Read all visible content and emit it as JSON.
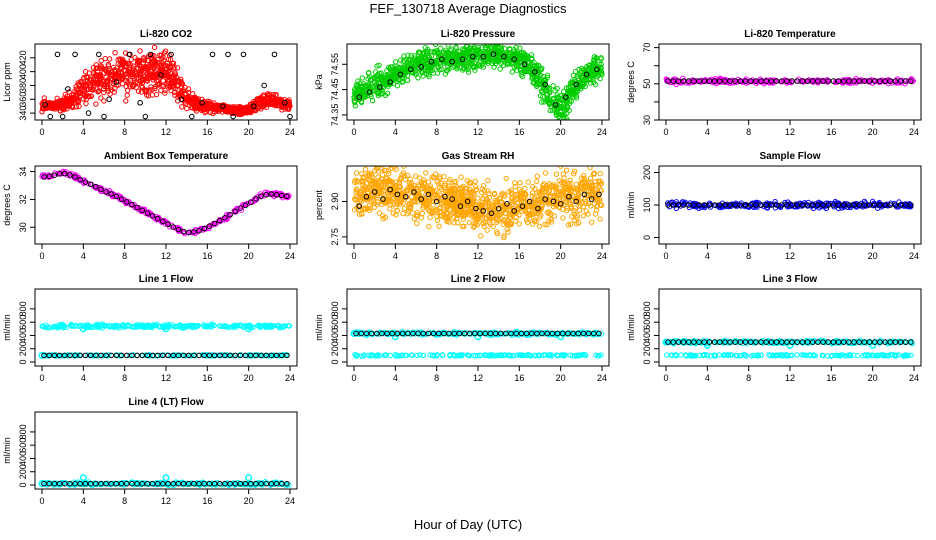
{
  "figure": {
    "title": "FEF_130718  Average Diagnostics",
    "xlabel": "Hour of Day (UTC)"
  },
  "colors": {
    "red": "#ff0000",
    "green": "#00cc00",
    "magenta": "#ff00ff",
    "orange": "#ffa500",
    "blue": "#0000ff",
    "cyan": "#00ffff",
    "avg": "#000000"
  },
  "chart_data": [
    {
      "type": "scatter",
      "title": "Li-820 CO2",
      "ylabel": "Licor ppm",
      "xlim": [
        0,
        24
      ],
      "ylim": [
        330,
        440
      ],
      "xticks": [
        0,
        4,
        8,
        12,
        16,
        20,
        24
      ],
      "yticks": [
        340,
        360,
        380,
        400,
        420
      ],
      "density_color": "red",
      "density": [
        [
          0,
          352,
          5
        ],
        [
          1,
          350,
          5
        ],
        [
          2,
          352,
          6
        ],
        [
          3,
          360,
          10
        ],
        [
          4,
          375,
          14
        ],
        [
          5,
          385,
          16
        ],
        [
          6,
          390,
          18
        ],
        [
          7,
          395,
          18
        ],
        [
          8,
          400,
          20
        ],
        [
          9,
          395,
          20
        ],
        [
          10,
          398,
          20
        ],
        [
          11,
          400,
          18
        ],
        [
          12,
          395,
          18
        ],
        [
          13,
          388,
          15
        ],
        [
          14,
          360,
          10
        ],
        [
          15,
          352,
          6
        ],
        [
          16,
          350,
          5
        ],
        [
          17,
          348,
          4
        ],
        [
          18,
          345,
          3
        ],
        [
          19,
          343,
          3
        ],
        [
          20,
          345,
          4
        ],
        [
          21,
          355,
          6
        ],
        [
          22,
          360,
          6
        ],
        [
          23,
          355,
          5
        ],
        [
          24,
          352,
          5
        ]
      ],
      "avg_points": [
        [
          0.3,
          352
        ],
        [
          0.8,
          335
        ],
        [
          1.5,
          425
        ],
        [
          2.5,
          375
        ],
        [
          3.2,
          425
        ],
        [
          4.5,
          340
        ],
        [
          5.5,
          425
        ],
        [
          6.5,
          360
        ],
        [
          7.2,
          385
        ],
        [
          8.5,
          425
        ],
        [
          9.5,
          355
        ],
        [
          10.5,
          425
        ],
        [
          11.5,
          395
        ],
        [
          12.5,
          425
        ],
        [
          13.5,
          360
        ],
        [
          14.5,
          335
        ],
        [
          15.5,
          355
        ],
        [
          16.5,
          425
        ],
        [
          17.5,
          350
        ],
        [
          18.5,
          335
        ],
        [
          19.5,
          425
        ],
        [
          20.5,
          350
        ],
        [
          21.5,
          380
        ],
        [
          22.5,
          425
        ],
        [
          23.5,
          355
        ],
        [
          24,
          335
        ],
        [
          2,
          335
        ],
        [
          6,
          335
        ],
        [
          10,
          335
        ],
        [
          18,
          425
        ]
      ]
    },
    {
      "type": "scatter",
      "title": "Li-820 Pressure",
      "ylabel": "kPa",
      "xlim": [
        0,
        24
      ],
      "ylim": [
        74.33,
        74.63
      ],
      "xticks": [
        0,
        4,
        8,
        12,
        16,
        20,
        24
      ],
      "yticks": [
        74.35,
        74.45,
        74.55
      ],
      "ytick_labels": [
        "74.35",
        "74.45",
        "74.55"
      ],
      "density_color": "green",
      "density": [
        [
          0,
          74.43,
          0.03
        ],
        [
          1,
          74.45,
          0.03
        ],
        [
          2,
          74.47,
          0.03
        ],
        [
          3,
          74.49,
          0.03
        ],
        [
          4,
          74.51,
          0.03
        ],
        [
          5,
          74.53,
          0.03
        ],
        [
          6,
          74.55,
          0.03
        ],
        [
          7,
          74.56,
          0.03
        ],
        [
          8,
          74.57,
          0.03
        ],
        [
          9,
          74.57,
          0.03
        ],
        [
          10,
          74.57,
          0.03
        ],
        [
          11,
          74.58,
          0.03
        ],
        [
          12,
          74.58,
          0.03
        ],
        [
          13,
          74.59,
          0.03
        ],
        [
          14,
          74.59,
          0.03
        ],
        [
          15,
          74.58,
          0.03
        ],
        [
          16,
          74.57,
          0.03
        ],
        [
          17,
          74.54,
          0.03
        ],
        [
          18,
          74.49,
          0.04
        ],
        [
          19,
          74.42,
          0.04
        ],
        [
          20,
          74.37,
          0.04
        ],
        [
          21,
          74.44,
          0.04
        ],
        [
          22,
          74.49,
          0.03
        ],
        [
          23,
          74.52,
          0.03
        ],
        [
          24,
          74.53,
          0.03
        ]
      ],
      "avg_points": [
        [
          0.5,
          74.42
        ],
        [
          1.5,
          74.44
        ],
        [
          2.5,
          74.46
        ],
        [
          3.5,
          74.48
        ],
        [
          4.5,
          74.51
        ],
        [
          5.5,
          74.53
        ],
        [
          6.5,
          74.54
        ],
        [
          7.5,
          74.56
        ],
        [
          8.5,
          74.57
        ],
        [
          9.5,
          74.56
        ],
        [
          10.5,
          74.57
        ],
        [
          11.5,
          74.58
        ],
        [
          12.5,
          74.58
        ],
        [
          13.5,
          74.59
        ],
        [
          14.5,
          74.58
        ],
        [
          15.5,
          74.57
        ],
        [
          16.5,
          74.55
        ],
        [
          17.5,
          74.52
        ],
        [
          18.5,
          74.47
        ],
        [
          19.5,
          74.39
        ],
        [
          20.5,
          74.42
        ],
        [
          21.5,
          74.47
        ],
        [
          22.5,
          74.51
        ],
        [
          23.5,
          74.53
        ]
      ]
    },
    {
      "type": "scatter",
      "title": "Li-820 Temperature",
      "ylabel": "degrees C",
      "xlim": [
        0,
        24
      ],
      "ylim": [
        30,
        72
      ],
      "xticks": [
        0,
        4,
        8,
        12,
        16,
        20,
        24
      ],
      "yticks": [
        30,
        40,
        50,
        60,
        70
      ],
      "ytick_labels": [
        "30",
        "",
        "50",
        "",
        "70"
      ],
      "density_color": "magenta",
      "density": [
        [
          0,
          51.5,
          0.8
        ],
        [
          24,
          51.5,
          0.8
        ]
      ],
      "avg_line": 51.5
    },
    {
      "type": "scatter",
      "title": "Ambient Box Temperature",
      "ylabel": "degrees C",
      "xlim": [
        0,
        24
      ],
      "ylim": [
        28.8,
        34.4
      ],
      "xticks": [
        0,
        4,
        8,
        12,
        16,
        20,
        24
      ],
      "yticks": [
        30,
        32,
        34
      ],
      "density_color": "magenta",
      "density": [
        [
          0,
          33.6,
          0.1
        ],
        [
          1,
          33.7,
          0.1
        ],
        [
          2,
          33.9,
          0.1
        ],
        [
          3,
          33.7,
          0.1
        ],
        [
          4,
          33.3,
          0.1
        ],
        [
          5,
          33.0,
          0.1
        ],
        [
          6,
          32.6,
          0.1
        ],
        [
          7,
          32.3,
          0.1
        ],
        [
          8,
          31.9,
          0.1
        ],
        [
          9,
          31.5,
          0.1
        ],
        [
          10,
          31.1,
          0.1
        ],
        [
          11,
          30.7,
          0.1
        ],
        [
          12,
          30.3,
          0.1
        ],
        [
          13,
          29.9,
          0.1
        ],
        [
          14,
          29.6,
          0.1
        ],
        [
          15,
          29.7,
          0.1
        ],
        [
          16,
          30.0,
          0.1
        ],
        [
          17,
          30.4,
          0.1
        ],
        [
          18,
          30.8,
          0.1
        ],
        [
          19,
          31.3,
          0.1
        ],
        [
          20,
          31.7,
          0.1
        ],
        [
          21,
          32.2,
          0.1
        ],
        [
          22,
          32.4,
          0.1
        ],
        [
          23,
          32.3,
          0.1
        ],
        [
          24,
          32.2,
          0.1
        ]
      ],
      "avg_line_follow": true
    },
    {
      "type": "scatter",
      "title": "Gas Stream RH",
      "ylabel": "percent",
      "xlim": [
        0,
        24
      ],
      "ylim": [
        2.72,
        3.05
      ],
      "xticks": [
        0,
        4,
        8,
        12,
        16,
        20,
        24
      ],
      "yticks": [
        2.75,
        2.9
      ],
      "ytick_labels": [
        "2.75",
        "2.90"
      ],
      "density_color": "orange",
      "density": [
        [
          0,
          2.92,
          0.06
        ],
        [
          1,
          2.95,
          0.06
        ],
        [
          2,
          2.96,
          0.06
        ],
        [
          3,
          2.95,
          0.06
        ],
        [
          4,
          2.94,
          0.06
        ],
        [
          5,
          2.93,
          0.06
        ],
        [
          6,
          2.92,
          0.06
        ],
        [
          7,
          2.92,
          0.06
        ],
        [
          8,
          2.92,
          0.06
        ],
        [
          9,
          2.9,
          0.06
        ],
        [
          10,
          2.9,
          0.06
        ],
        [
          11,
          2.89,
          0.06
        ],
        [
          12,
          2.87,
          0.06
        ],
        [
          13,
          2.86,
          0.06
        ],
        [
          14,
          2.86,
          0.06
        ],
        [
          15,
          2.87,
          0.06
        ],
        [
          16,
          2.88,
          0.06
        ],
        [
          17,
          2.89,
          0.06
        ],
        [
          18,
          2.9,
          0.06
        ],
        [
          19,
          2.91,
          0.06
        ],
        [
          20,
          2.92,
          0.06
        ],
        [
          21,
          2.93,
          0.06
        ],
        [
          22,
          2.93,
          0.06
        ],
        [
          23,
          2.94,
          0.06
        ],
        [
          24,
          2.94,
          0.06
        ]
      ],
      "avg_points": [
        [
          0.5,
          2.88
        ],
        [
          1.2,
          2.92
        ],
        [
          2,
          2.94
        ],
        [
          2.8,
          2.91
        ],
        [
          3.5,
          2.95
        ],
        [
          4.2,
          2.93
        ],
        [
          5,
          2.92
        ],
        [
          5.8,
          2.94
        ],
        [
          6.5,
          2.91
        ],
        [
          7.2,
          2.93
        ],
        [
          8,
          2.9
        ],
        [
          8.8,
          2.92
        ],
        [
          9.5,
          2.91
        ],
        [
          10.3,
          2.88
        ],
        [
          11,
          2.9
        ],
        [
          11.8,
          2.87
        ],
        [
          12.5,
          2.86
        ],
        [
          13.3,
          2.85
        ],
        [
          14,
          2.87
        ],
        [
          14.8,
          2.89
        ],
        [
          15.5,
          2.86
        ],
        [
          16.3,
          2.88
        ],
        [
          17,
          2.9
        ],
        [
          17.8,
          2.87
        ],
        [
          18.5,
          2.91
        ],
        [
          19.3,
          2.9
        ],
        [
          20,
          2.89
        ],
        [
          20.8,
          2.92
        ],
        [
          21.5,
          2.9
        ],
        [
          22.3,
          2.93
        ],
        [
          23,
          2.91
        ],
        [
          23.7,
          2.93
        ]
      ]
    },
    {
      "type": "scatter",
      "title": "Sample Flow",
      "ylabel": "ml/min",
      "xlim": [
        0,
        24
      ],
      "ylim": [
        -20,
        220
      ],
      "xticks": [
        0,
        4,
        8,
        12,
        16,
        20,
        24
      ],
      "yticks": [
        0,
        100,
        200
      ],
      "density_color": "blue",
      "density": [
        [
          0,
          100,
          6
        ],
        [
          24,
          100,
          6
        ]
      ],
      "avg_line": 100
    },
    {
      "type": "scatter",
      "title": "Line 1 Flow",
      "ylabel": "ml/min",
      "xlim": [
        0,
        24
      ],
      "ylim": [
        -60,
        1100
      ],
      "xticks": [
        0,
        4,
        8,
        12,
        16,
        20,
        24
      ],
      "yticks": [
        0,
        200,
        400,
        600,
        800
      ],
      "density_color": "cyan",
      "density": [
        [
          0,
          540,
          15
        ],
        [
          24,
          540,
          15
        ]
      ],
      "second_band": 100,
      "avg_line": 100,
      "outliers": [
        [
          4,
          500
        ],
        [
          12,
          500
        ],
        [
          20,
          500
        ],
        [
          0,
          100
        ]
      ]
    },
    {
      "type": "scatter",
      "title": "Line 2 Flow",
      "ylabel": "ml/min",
      "xlim": [
        0,
        24
      ],
      "ylim": [
        -60,
        1100
      ],
      "xticks": [
        0,
        4,
        8,
        12,
        16,
        20,
        24
      ],
      "yticks": [
        0,
        200,
        400,
        600,
        800
      ],
      "density_color": "cyan",
      "density": [
        [
          0,
          430,
          15
        ],
        [
          24,
          430,
          15
        ]
      ],
      "second_band": 100,
      "avg_line": 430,
      "outliers": [
        [
          0,
          430
        ],
        [
          4,
          380
        ],
        [
          12,
          380
        ],
        [
          20,
          380
        ]
      ]
    },
    {
      "type": "scatter",
      "title": "Line 3 Flow",
      "ylabel": "ml/min",
      "xlim": [
        0,
        24
      ],
      "ylim": [
        -60,
        1100
      ],
      "xticks": [
        0,
        4,
        8,
        12,
        16,
        20,
        24
      ],
      "yticks": [
        0,
        200,
        400,
        600,
        800
      ],
      "density_color": "cyan",
      "density": [
        [
          0,
          300,
          15
        ],
        [
          24,
          300,
          15
        ]
      ],
      "second_band": 100,
      "avg_line": 300,
      "outliers": [
        [
          0,
          300
        ],
        [
          4,
          250
        ],
        [
          12,
          250
        ],
        [
          20,
          250
        ]
      ]
    },
    {
      "type": "scatter",
      "title": "Line 4 (LT) Flow",
      "ylabel": "ml/min",
      "xlim": [
        0,
        24
      ],
      "ylim": [
        -60,
        1100
      ],
      "xticks": [
        0,
        4,
        8,
        12,
        16,
        20,
        24
      ],
      "yticks": [
        0,
        200,
        400,
        600,
        800
      ],
      "density_color": "cyan",
      "density": [
        [
          0,
          20,
          15
        ],
        [
          24,
          20,
          15
        ]
      ],
      "avg_line": 20,
      "outliers": [
        [
          0,
          20
        ],
        [
          4,
          110
        ],
        [
          12,
          110
        ],
        [
          20,
          110
        ]
      ]
    }
  ]
}
